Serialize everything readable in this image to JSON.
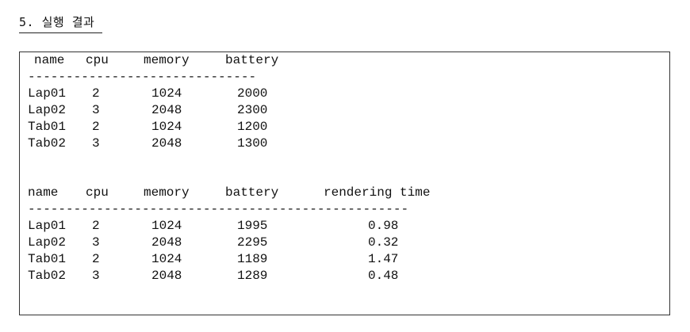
{
  "heading": "5. 실행 결과",
  "table1": {
    "headers": [
      "name",
      "cpu",
      "memory",
      "battery"
    ],
    "separator": "------------------------------",
    "rows": [
      [
        "Lap01",
        "2",
        "1024",
        "2000"
      ],
      [
        "Lap02",
        "3",
        "2048",
        "2300"
      ],
      [
        "Tab01",
        "2",
        "1024",
        "1200"
      ],
      [
        "Tab02",
        "3",
        "2048",
        "1300"
      ]
    ]
  },
  "table2": {
    "headers": [
      "name",
      "cpu",
      "memory",
      "battery",
      "rendering time"
    ],
    "separator": "--------------------------------------------------",
    "rows": [
      [
        "Lap01",
        "2",
        "1024",
        "1995",
        "0.98"
      ],
      [
        "Lap02",
        "3",
        "2048",
        "2295",
        "0.32"
      ],
      [
        "Tab01",
        "2",
        "1024",
        "1189",
        "1.47"
      ],
      [
        "Tab02",
        "3",
        "2048",
        "1289",
        "0.48"
      ]
    ]
  }
}
